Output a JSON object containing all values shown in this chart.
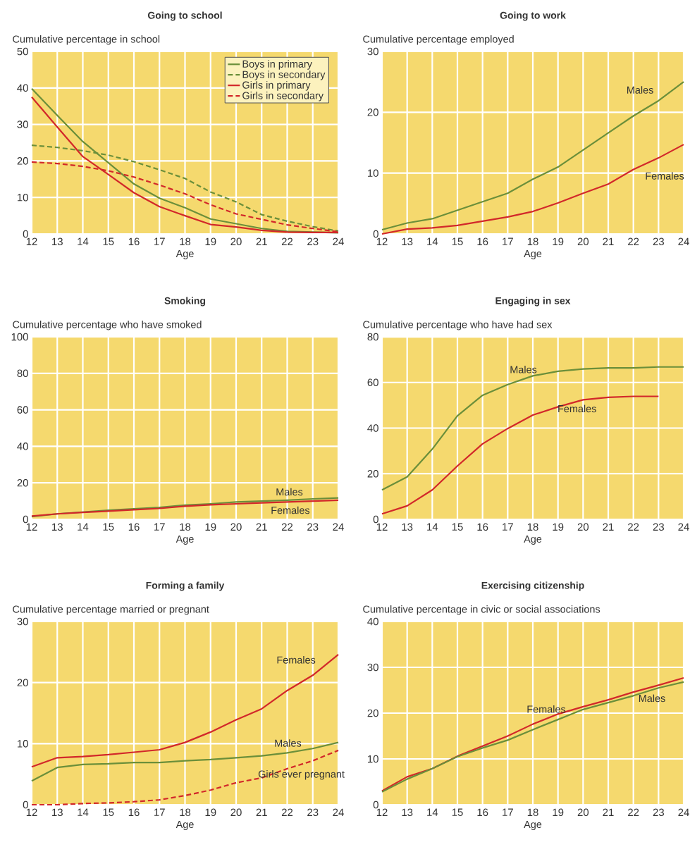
{
  "chart_data": [
    {
      "type": "line",
      "title": "Going to school",
      "ylabel": "Cumulative percentage in school",
      "xlabel": "Age",
      "x": [
        12,
        13,
        14,
        15,
        16,
        17,
        18,
        19,
        20,
        21,
        22,
        23,
        24
      ],
      "xlim": [
        12,
        24
      ],
      "xticks": [
        12,
        13,
        14,
        15,
        16,
        17,
        18,
        19,
        20,
        21,
        22,
        23,
        24
      ],
      "ylim": [
        0,
        50
      ],
      "yticks": [
        0,
        10,
        20,
        30,
        40,
        50
      ],
      "grid": true,
      "legend": "top right",
      "series": [
        {
          "name": "Boys in primary",
          "color": "#6b8f3a",
          "line_style": "solid",
          "values": [
            39.8,
            32.5,
            25.3,
            19.5,
            13.7,
            9.8,
            7.2,
            4.1,
            2.8,
            1.5,
            0.7,
            0.5,
            0.3
          ]
        },
        {
          "name": "Boys in secondary",
          "color": "#6b8f3a",
          "line_style": "dashed",
          "values": [
            24.3,
            23.7,
            22.8,
            21.6,
            19.8,
            17.6,
            15.2,
            11.5,
            8.8,
            5.3,
            3.5,
            2.0,
            0.8
          ]
        },
        {
          "name": "Girls in primary",
          "color": "#d2282a",
          "line_style": "solid",
          "values": [
            37.5,
            29.3,
            21.2,
            16.3,
            11.3,
            7.5,
            5.0,
            2.6,
            1.9,
            1.0,
            0.5,
            0.4,
            0.4
          ]
        },
        {
          "name": "Girls in secondary",
          "color": "#d2282a",
          "line_style": "dashed",
          "values": [
            19.7,
            19.3,
            18.5,
            17.3,
            15.6,
            13.4,
            11.0,
            8.0,
            5.5,
            4.0,
            2.5,
            1.5,
            0.6
          ]
        }
      ]
    },
    {
      "type": "line",
      "title": "Going to work",
      "ylabel": "Cumulative percentage employed",
      "xlabel": "Age",
      "x": [
        12,
        13,
        14,
        15,
        16,
        17,
        18,
        19,
        20,
        21,
        22,
        23,
        24
      ],
      "xlim": [
        12,
        24
      ],
      "xticks": [
        12,
        13,
        14,
        15,
        16,
        17,
        18,
        19,
        20,
        21,
        22,
        23,
        24
      ],
      "ylim": [
        0,
        30
      ],
      "yticks": [
        0,
        10,
        20,
        30
      ],
      "grid": true,
      "series": [
        {
          "name": "Males",
          "color": "#6b8f3a",
          "values": [
            0.7,
            1.8,
            2.5,
            3.9,
            5.3,
            6.7,
            9.0,
            11.0,
            13.8,
            16.6,
            19.4,
            21.9,
            25.0
          ]
        },
        {
          "name": "Females",
          "color": "#d2282a",
          "values": [
            0,
            0.8,
            1.0,
            1.4,
            2.1,
            2.8,
            3.7,
            5.1,
            6.7,
            8.2,
            10.6,
            12.5,
            14.7
          ]
        }
      ]
    },
    {
      "type": "line",
      "title": "Smoking",
      "ylabel": "Cumulative percentage who have smoked",
      "xlabel": "Age",
      "x": [
        12,
        13,
        14,
        15,
        16,
        17,
        18,
        19,
        20,
        21,
        22,
        23,
        24
      ],
      "xlim": [
        12,
        24
      ],
      "xticks": [
        12,
        13,
        14,
        15,
        16,
        17,
        18,
        19,
        20,
        21,
        22,
        23,
        24
      ],
      "ylim": [
        0,
        100
      ],
      "yticks": [
        0,
        20,
        40,
        60,
        80,
        100
      ],
      "grid": true,
      "series": [
        {
          "name": "Males",
          "color": "#6b8f3a",
          "values": [
            1.5,
            3,
            4,
            5,
            5.8,
            6.5,
            7.8,
            8.5,
            9.5,
            10,
            10.5,
            11.2,
            11.7
          ]
        },
        {
          "name": "Females",
          "color": "#d2282a",
          "values": [
            1.8,
            3,
            3.8,
            4.5,
            5.3,
            6,
            7.2,
            8,
            8.5,
            9,
            9.5,
            10,
            10.5
          ]
        }
      ]
    },
    {
      "type": "line",
      "title": "Engaging in sex",
      "ylabel": "Cumulative percentage who have had sex",
      "xlabel": "Age",
      "x": [
        12,
        13,
        14,
        15,
        16,
        17,
        18,
        19,
        20,
        21,
        22,
        23,
        24
      ],
      "xlim": [
        12,
        24
      ],
      "xticks": [
        12,
        13,
        14,
        15,
        16,
        17,
        18,
        19,
        20,
        21,
        22,
        23,
        24
      ],
      "ylim": [
        0,
        80
      ],
      "yticks": [
        0,
        20,
        40,
        60,
        80
      ],
      "grid": true,
      "series": [
        {
          "name": "Males",
          "color": "#6b8f3a",
          "values": [
            12.9,
            18.6,
            30.8,
            45.4,
            54.4,
            59.1,
            62.9,
            64.9,
            65.9,
            66.4,
            66.4,
            66.8,
            66.8
          ]
        },
        {
          "name": "Females",
          "color": "#d2282a",
          "values": [
            2.4,
            5.9,
            12.9,
            23.4,
            33.1,
            39.8,
            45.7,
            49.3,
            52.4,
            53.5,
            53.9,
            53.9,
            null
          ]
        }
      ]
    },
    {
      "type": "line",
      "title": "Forming a family",
      "ylabel": "Cumulative percentage married or pregnant",
      "xlabel": "Age",
      "x": [
        12,
        13,
        14,
        15,
        16,
        17,
        18,
        19,
        20,
        21,
        22,
        23,
        24
      ],
      "xlim": [
        12,
        24
      ],
      "xticks": [
        12,
        13,
        14,
        15,
        16,
        17,
        18,
        19,
        20,
        21,
        22,
        23,
        24
      ],
      "ylim": [
        0,
        30
      ],
      "yticks": [
        0,
        10,
        20,
        30
      ],
      "grid": true,
      "series": [
        {
          "name": "Females",
          "color": "#d2282a",
          "line_style": "solid",
          "values": [
            6.2,
            7.7,
            7.9,
            8.2,
            8.6,
            9.0,
            10.2,
            11.9,
            13.9,
            15.7,
            18.7,
            21.2,
            24.6
          ]
        },
        {
          "name": "Males",
          "color": "#6b8f3a",
          "line_style": "solid",
          "values": [
            3.9,
            6.1,
            6.6,
            6.7,
            6.9,
            6.9,
            7.2,
            7.4,
            7.7,
            8.0,
            8.5,
            9.2,
            10.2
          ]
        },
        {
          "name": "Girls ever pregnant",
          "color": "#d2282a",
          "line_style": "dashed",
          "values": [
            0,
            0,
            0.2,
            0.3,
            0.5,
            0.8,
            1.5,
            2.4,
            3.6,
            4.4,
            5.9,
            7.2,
            8.9
          ]
        }
      ]
    },
    {
      "type": "line",
      "title": "Exercising citizenship",
      "ylabel": "Cumulative percentage in civic or social associations",
      "xlabel": "Age",
      "x": [
        12,
        13,
        14,
        15,
        16,
        17,
        18,
        19,
        20,
        21,
        22,
        23,
        24
      ],
      "xlim": [
        12,
        24
      ],
      "xticks": [
        12,
        13,
        14,
        15,
        16,
        17,
        18,
        19,
        20,
        21,
        22,
        23,
        24
      ],
      "ylim": [
        0,
        40
      ],
      "yticks": [
        0,
        10,
        20,
        30,
        40
      ],
      "grid": true,
      "series": [
        {
          "name": "Females",
          "color": "#d2282a",
          "values": [
            3.0,
            6.1,
            7.9,
            10.6,
            12.8,
            15.0,
            17.6,
            19.8,
            21.4,
            22.9,
            24.6,
            26.1,
            27.7
          ]
        },
        {
          "name": "Males",
          "color": "#6b8f3a",
          "values": [
            2.8,
            5.6,
            7.9,
            10.5,
            12.4,
            14.1,
            16.4,
            18.6,
            20.8,
            22.3,
            23.8,
            25.5,
            26.8
          ]
        }
      ]
    }
  ]
}
